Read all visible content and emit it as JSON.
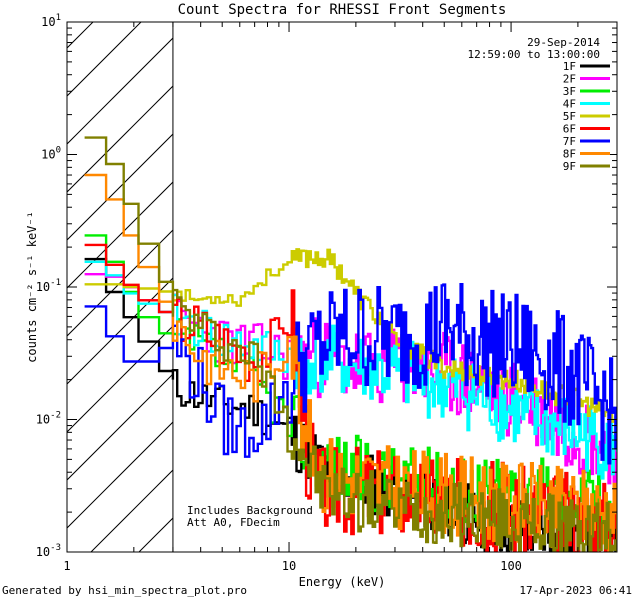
{
  "chart_data": {
    "type": "line",
    "title": "Count Spectra for RHESSI Front Segments",
    "xlabel": "Energy (keV)",
    "ylabel": "counts cm⁻² s⁻¹ keV⁻¹",
    "xscale": "log",
    "yscale": "log",
    "xlim": [
      1,
      300
    ],
    "ylim": [
      0.001,
      10
    ],
    "x_ticks": [
      {
        "value": 1,
        "label": "1"
      },
      {
        "value": 10,
        "label": "10"
      },
      {
        "value": 100,
        "label": "100"
      }
    ],
    "y_ticks": [
      {
        "value": 10,
        "label": "10",
        "exp": "1"
      },
      {
        "value": 1,
        "label": "10",
        "exp": "0"
      },
      {
        "value": 0.1,
        "label": "10",
        "exp": "-1"
      },
      {
        "value": 0.01,
        "label": "10",
        "exp": "-2"
      },
      {
        "value": 0.001,
        "label": "10",
        "exp": "-3"
      }
    ],
    "excluded_region_max_keV": 3,
    "legend_position": "top-right",
    "date": "29-Sep-2014",
    "time_range": "12:59:00 to 13:00:00",
    "annotations": [
      "Includes Background",
      "Att A0, FDecim"
    ],
    "series": [
      {
        "name": "1F",
        "color": "#000000",
        "noise": 0.35,
        "seed": 11,
        "points": [
          [
            1.2,
            0.22
          ],
          [
            1.5,
            0.12
          ],
          [
            1.8,
            0.07
          ],
          [
            2.1,
            0.05
          ],
          [
            2.6,
            0.03
          ],
          [
            3,
            0.018
          ],
          [
            4,
            0.015
          ],
          [
            5,
            0.013
          ],
          [
            7,
            0.012
          ],
          [
            10,
            0.008
          ],
          [
            14,
            0.0045
          ],
          [
            20,
            0.0035
          ],
          [
            30,
            0.003
          ],
          [
            50,
            0.0022
          ],
          [
            80,
            0.0017
          ],
          [
            120,
            0.0015
          ],
          [
            200,
            0.0013
          ],
          [
            300,
            0.0012
          ]
        ]
      },
      {
        "name": "2F",
        "color": "#ff00ff",
        "noise": 0.45,
        "seed": 23,
        "points": [
          [
            1.2,
            0.12
          ],
          [
            1.5,
            0.13
          ],
          [
            1.8,
            0.11
          ],
          [
            2.1,
            0.09
          ],
          [
            2.6,
            0.07
          ],
          [
            3,
            0.06
          ],
          [
            4,
            0.05
          ],
          [
            5,
            0.04
          ],
          [
            7,
            0.035
          ],
          [
            10,
            0.03
          ],
          [
            14,
            0.03
          ],
          [
            20,
            0.025
          ],
          [
            30,
            0.025
          ],
          [
            50,
            0.022
          ],
          [
            80,
            0.017
          ],
          [
            120,
            0.013
          ],
          [
            200,
            0.008
          ],
          [
            300,
            0.006
          ]
        ]
      },
      {
        "name": "3F",
        "color": "#00ee00",
        "noise": 0.4,
        "seed": 37,
        "points": [
          [
            1.2,
            0.3
          ],
          [
            1.5,
            0.2
          ],
          [
            1.8,
            0.12
          ],
          [
            2.1,
            0.07
          ],
          [
            2.6,
            0.05
          ],
          [
            3,
            0.04
          ],
          [
            4,
            0.035
          ],
          [
            5,
            0.03
          ],
          [
            7,
            0.02
          ],
          [
            10,
            0.01
          ],
          [
            14,
            0.005
          ],
          [
            20,
            0.004
          ],
          [
            30,
            0.0035
          ],
          [
            50,
            0.0032
          ],
          [
            80,
            0.003
          ],
          [
            120,
            0.0028
          ],
          [
            200,
            0.0025
          ],
          [
            300,
            0.0022
          ]
        ]
      },
      {
        "name": "4F",
        "color": "#00ffff",
        "noise": 0.4,
        "seed": 41,
        "points": [
          [
            1.2,
            0.16
          ],
          [
            1.5,
            0.15
          ],
          [
            1.8,
            0.1
          ],
          [
            2.1,
            0.08
          ],
          [
            2.6,
            0.07
          ],
          [
            3,
            0.06
          ],
          [
            4,
            0.05
          ],
          [
            5,
            0.04
          ],
          [
            7,
            0.035
          ],
          [
            10,
            0.03
          ],
          [
            14,
            0.028
          ],
          [
            20,
            0.025
          ],
          [
            30,
            0.022
          ],
          [
            50,
            0.018
          ],
          [
            80,
            0.014
          ],
          [
            120,
            0.01
          ],
          [
            200,
            0.008
          ],
          [
            300,
            0.006
          ]
        ]
      },
      {
        "name": "5F",
        "color": "#cccc00",
        "noise": 0.12,
        "seed": 53,
        "points": [
          [
            1.2,
            0.1
          ],
          [
            1.5,
            0.11
          ],
          [
            1.8,
            0.1
          ],
          [
            2.1,
            0.1
          ],
          [
            2.6,
            0.095
          ],
          [
            3,
            0.09
          ],
          [
            4,
            0.08
          ],
          [
            5,
            0.085
          ],
          [
            6,
            0.08
          ],
          [
            7,
            0.1
          ],
          [
            8,
            0.12
          ],
          [
            9,
            0.14
          ],
          [
            10,
            0.15
          ],
          [
            12,
            0.17
          ],
          [
            14,
            0.17
          ],
          [
            16,
            0.15
          ],
          [
            18,
            0.12
          ],
          [
            20,
            0.09
          ],
          [
            25,
            0.06
          ],
          [
            30,
            0.04
          ],
          [
            40,
            0.03
          ],
          [
            50,
            0.025
          ],
          [
            70,
            0.022
          ],
          [
            100,
            0.02
          ],
          [
            150,
            0.016
          ],
          [
            200,
            0.014
          ],
          [
            300,
            0.01
          ]
        ]
      },
      {
        "name": "6F",
        "color": "#ff0000",
        "noise": 0.5,
        "seed": 67,
        "points": [
          [
            1.2,
            0.24
          ],
          [
            1.5,
            0.18
          ],
          [
            1.8,
            0.12
          ],
          [
            2.1,
            0.09
          ],
          [
            2.6,
            0.07
          ],
          [
            3,
            0.06
          ],
          [
            4,
            0.05
          ],
          [
            5,
            0.04
          ],
          [
            7,
            0.03
          ],
          [
            9,
            0.04
          ],
          [
            10,
            0.08
          ],
          [
            11,
            0.03
          ],
          [
            12,
            0.006
          ],
          [
            14,
            0.003
          ],
          [
            20,
            0.003
          ],
          [
            30,
            0.0028
          ],
          [
            50,
            0.0025
          ],
          [
            80,
            0.0022
          ],
          [
            120,
            0.002
          ],
          [
            200,
            0.0018
          ],
          [
            300,
            0.0016
          ]
        ]
      },
      {
        "name": "7F",
        "color": "#0000ff",
        "noise": 0.6,
        "seed": 79,
        "points": [
          [
            1.2,
            0.085
          ],
          [
            1.5,
            0.06
          ],
          [
            1.8,
            0.03
          ],
          [
            2.1,
            0.025
          ],
          [
            2.6,
            0.03
          ],
          [
            3,
            0.04
          ],
          [
            4,
            0.02
          ],
          [
            5,
            0.01
          ],
          [
            6,
            0.008
          ],
          [
            8,
            0.01
          ],
          [
            10,
            0.02
          ],
          [
            12,
            0.03
          ],
          [
            15,
            0.04
          ],
          [
            20,
            0.045
          ],
          [
            30,
            0.04
          ],
          [
            50,
            0.05
          ],
          [
            70,
            0.04
          ],
          [
            100,
            0.035
          ],
          [
            150,
            0.028
          ],
          [
            200,
            0.02
          ],
          [
            300,
            0.01
          ]
        ]
      },
      {
        "name": "8F",
        "color": "#ff8800",
        "noise": 0.45,
        "seed": 83,
        "points": [
          [
            1.2,
            0.7
          ],
          [
            1.5,
            0.7
          ],
          [
            1.8,
            0.3
          ],
          [
            2.1,
            0.2
          ],
          [
            2.6,
            0.1
          ],
          [
            3,
            0.06
          ],
          [
            4,
            0.03
          ],
          [
            5,
            0.025
          ],
          [
            7,
            0.02
          ],
          [
            9,
            0.03
          ],
          [
            10,
            0.05
          ],
          [
            11,
            0.02
          ],
          [
            12,
            0.008
          ],
          [
            14,
            0.004
          ],
          [
            20,
            0.0035
          ],
          [
            30,
            0.003
          ],
          [
            50,
            0.0028
          ],
          [
            80,
            0.0025
          ],
          [
            120,
            0.0023
          ],
          [
            200,
            0.0021
          ],
          [
            300,
            0.002
          ]
        ]
      },
      {
        "name": "9F",
        "color": "#808000",
        "noise": 0.35,
        "seed": 97,
        "points": [
          [
            1.2,
            1.5
          ],
          [
            1.5,
            1.2
          ],
          [
            1.8,
            0.6
          ],
          [
            2.1,
            0.3
          ],
          [
            2.6,
            0.15
          ],
          [
            3,
            0.08
          ],
          [
            4,
            0.05
          ],
          [
            5,
            0.04
          ],
          [
            7,
            0.03
          ],
          [
            10,
            0.01
          ],
          [
            14,
            0.003
          ],
          [
            20,
            0.0025
          ],
          [
            30,
            0.0022
          ],
          [
            50,
            0.002
          ],
          [
            80,
            0.0018
          ],
          [
            120,
            0.0016
          ],
          [
            200,
            0.0015
          ],
          [
            300,
            0.0014
          ]
        ]
      }
    ]
  },
  "footer": {
    "generated_by": "Generated by hsi_min_spectra_plot.pro",
    "date_time": "17-Apr-2023 06:41"
  }
}
